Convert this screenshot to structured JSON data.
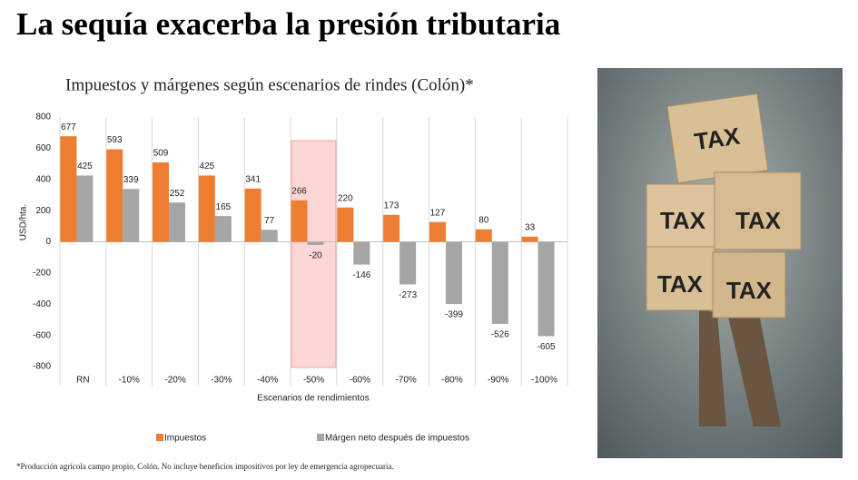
{
  "title": "La sequía exacerba la presión tributaria",
  "footnote": "*Producción agrícola campo propio, Colón. No incluye beneficios impositivos por ley de emergencia agropecuaria.",
  "photo_labels": [
    "TAX",
    "TAX",
    "TAX",
    "TAX",
    "TAX"
  ],
  "chart_data": {
    "type": "bar",
    "title": "Impuestos y márgenes según escenarios de rindes (Colón)*",
    "x_label": "Escenarios de rendimientos",
    "y_label": "USD/hta.",
    "categories": [
      "RN",
      "-10%",
      "-20%",
      "-30%",
      "-40%",
      "-50%",
      "-60%",
      "-70%",
      "-80%",
      "-90%",
      "-100%"
    ],
    "series": [
      {
        "name": "Impuestos",
        "color": "#ed7d31",
        "values": [
          677,
          593,
          509,
          425,
          341,
          266,
          220,
          173,
          127,
          80,
          33
        ]
      },
      {
        "name": "Márgen neto después de impuestos",
        "color": "#a5a5a5",
        "values": [
          425,
          339,
          252,
          165,
          77,
          -20,
          -146,
          -273,
          -399,
          -526,
          -605
        ]
      }
    ],
    "ylim": [
      -800,
      800
    ],
    "yticks": [
      -800,
      -600,
      -400,
      -200,
      0,
      200,
      400,
      600,
      800
    ],
    "highlight": 5,
    "legend": "bottom"
  }
}
